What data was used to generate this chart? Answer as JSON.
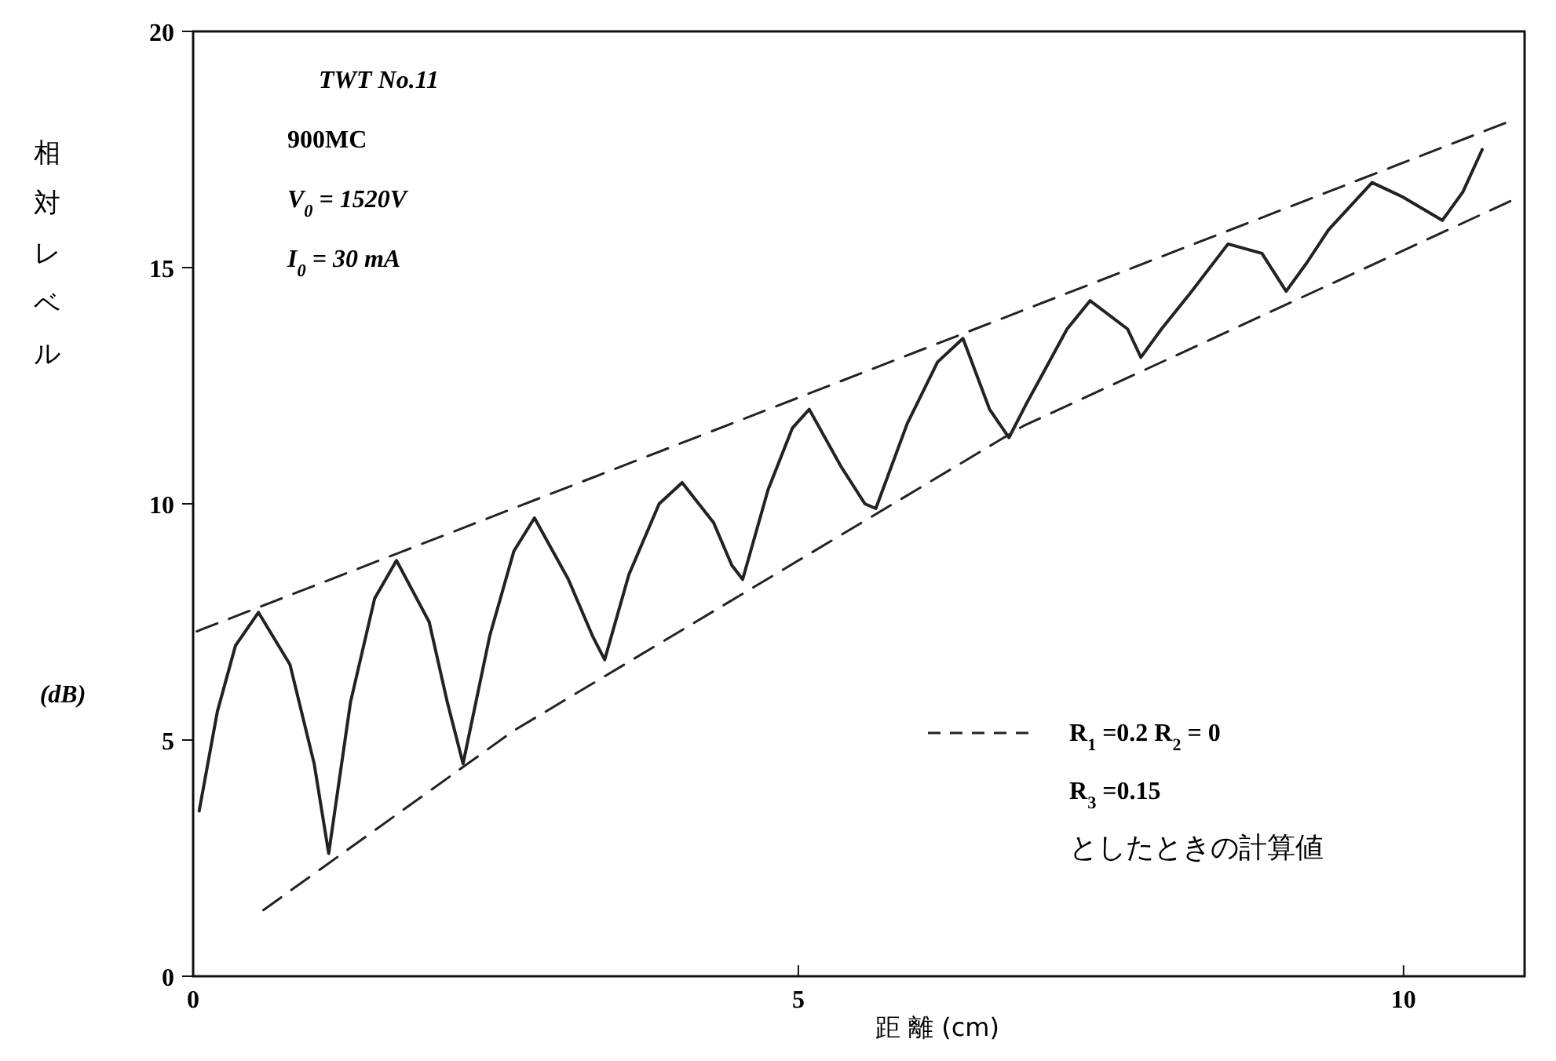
{
  "chart_data": {
    "type": "line",
    "xlabel": "距 離 (cm)",
    "ylabel": "相対レベル",
    "xlim": [
      0,
      11
    ],
    "xticks": [
      0,
      5,
      10
    ],
    "ylim": [
      0,
      20
    ],
    "yticks": [
      0,
      5,
      10,
      15,
      20
    ],
    "legend": "bottom right",
    "annotations": [
      "TWT No.11",
      "900MC",
      "V$_{0}$ = 1520V",
      "I$_{0}$ = 30 mA",
      "(dB)",
      "R$_{3}$ =0.15",
      "としたときの計算値"
    ],
    "series": [
      {
        "color": "#222222",
        "line_style": "solid",
        "x": [
          0.05,
          0.2,
          0.35,
          0.54,
          0.8,
          1.0,
          1.12,
          1.3,
          1.5,
          1.68,
          1.95,
          2.1,
          2.23,
          2.45,
          2.65,
          2.82,
          3.1,
          3.3,
          3.4,
          3.6,
          3.85,
          4.04,
          4.3,
          4.45,
          4.54,
          4.75,
          4.95,
          5.09,
          5.35,
          5.55,
          5.64,
          5.9,
          6.15,
          6.36,
          6.58,
          6.74,
          6.88,
          7.05,
          7.22,
          7.41,
          7.72,
          7.83,
          8.0,
          8.22,
          8.55,
          8.83,
          9.03,
          9.2,
          9.38,
          9.74,
          9.99,
          10.32,
          10.49,
          10.65
        ],
        "values": [
          3.5,
          5.6,
          7.0,
          7.7,
          6.6,
          4.5,
          2.6,
          5.8,
          8.0,
          8.8,
          7.5,
          5.8,
          4.5,
          7.2,
          9.0,
          9.7,
          8.4,
          7.2,
          6.7,
          8.5,
          10.0,
          10.45,
          9.6,
          8.7,
          8.4,
          10.3,
          11.6,
          12.0,
          10.8,
          10.0,
          9.9,
          11.7,
          13.0,
          13.5,
          12.0,
          11.4,
          12.1,
          12.9,
          13.7,
          14.3,
          13.7,
          13.1,
          13.7,
          14.4,
          15.5,
          15.3,
          14.5,
          15.1,
          15.8,
          16.8,
          16.5,
          16.0,
          16.6,
          17.5
        ]
      },
      {
        "name": "R$_{1}$ =0.2  R$_{2}$ = 0",
        "color": "#222222",
        "line_style": "dashed",
        "x": [
          0.03,
          10.88
        ],
        "values": [
          7.3,
          18.1
        ]
      },
      {
        "color": "#222222",
        "line_style": "dashed",
        "x": [
          0.58,
          2.65,
          6.86,
          10.96
        ],
        "values": [
          1.4,
          5.2,
          11.65,
          16.5
        ]
      }
    ]
  }
}
